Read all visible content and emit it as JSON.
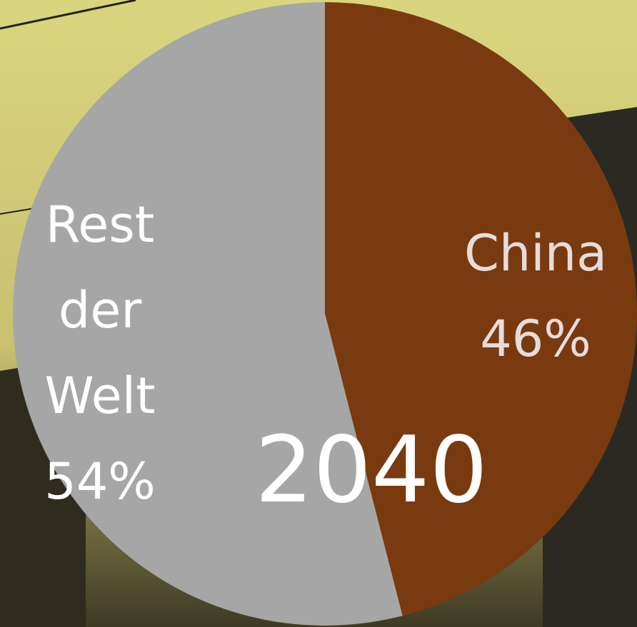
{
  "chart_data": {
    "type": "pie",
    "title": "2040",
    "categories": [
      "China",
      "Rest der Welt"
    ],
    "values": [
      46,
      54
    ],
    "value_labels": [
      "46%",
      "54%"
    ],
    "colors": [
      "#7a3a0f",
      "#a6a6a6"
    ]
  }
}
